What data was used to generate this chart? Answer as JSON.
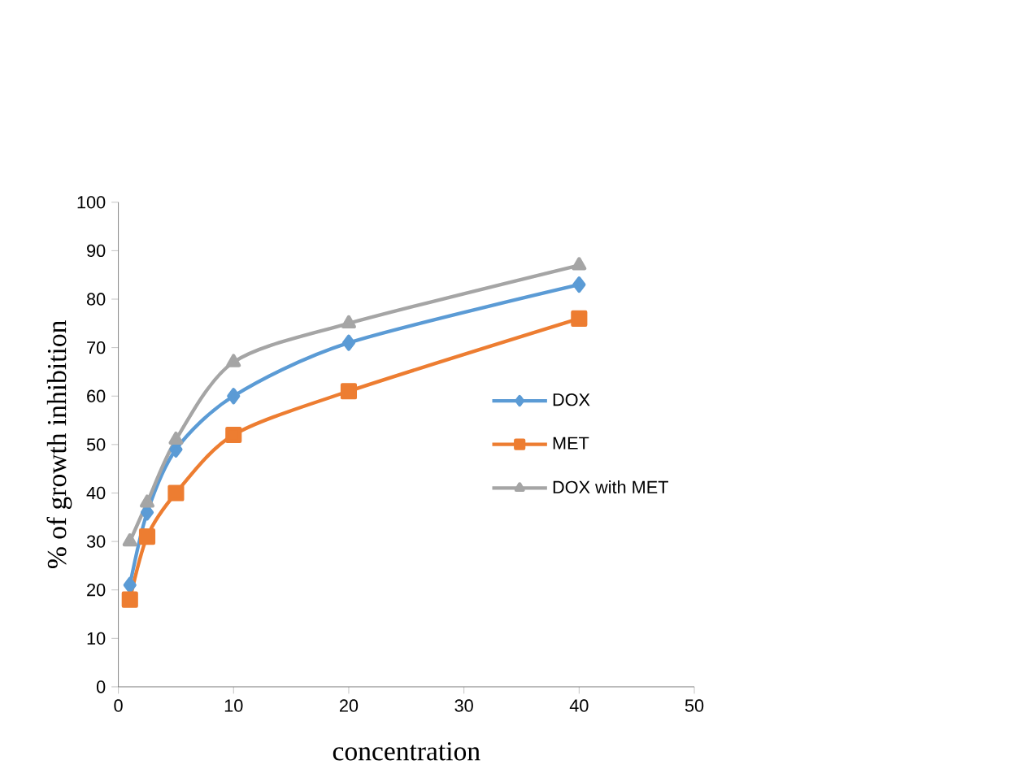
{
  "chart_data": {
    "type": "line",
    "xlabel": "concentration",
    "ylabel": "% of growth inhibition",
    "xlim": [
      0,
      50
    ],
    "xticks": [
      0,
      10,
      20,
      30,
      40,
      50
    ],
    "ylim": [
      0,
      100
    ],
    "yticks": [
      0,
      10,
      20,
      30,
      40,
      50,
      60,
      70,
      80,
      90,
      100
    ],
    "grid": false,
    "legend": "right",
    "series": [
      {
        "name": "DOX",
        "color": "#5b9bd5",
        "marker": "diamond",
        "x": [
          1,
          2.5,
          5,
          10,
          20,
          40
        ],
        "values": [
          21,
          36,
          49,
          60,
          71,
          83
        ]
      },
      {
        "name": "MET",
        "color": "#ed7d31",
        "marker": "square",
        "x": [
          1,
          2.5,
          5,
          10,
          20,
          40
        ],
        "values": [
          18,
          31,
          40,
          52,
          61,
          76
        ]
      },
      {
        "name": "DOX with MET",
        "color": "#a5a5a5",
        "marker": "triangle",
        "x": [
          1,
          2.5,
          5,
          10,
          20,
          40
        ],
        "values": [
          30,
          38,
          51,
          67,
          75,
          87
        ]
      }
    ]
  }
}
